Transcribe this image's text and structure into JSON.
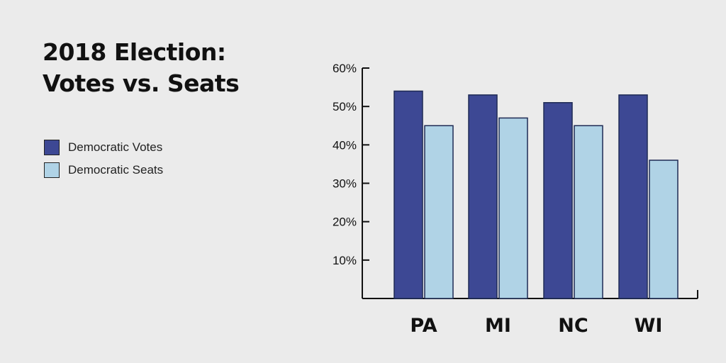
{
  "title_lines": [
    "2018 Election:",
    "Votes vs. Seats"
  ],
  "legend": [
    {
      "label": "Democratic Votes",
      "color": "#3d4894"
    },
    {
      "label": "Democratic Seats",
      "color": "#b0d3e6"
    }
  ],
  "chart_data": {
    "type": "bar",
    "title": "2018 Election: Votes vs. Seats",
    "categories": [
      "PA",
      "MI",
      "NC",
      "WI"
    ],
    "series": [
      {
        "name": "Democratic Votes",
        "color": "#3d4894",
        "values": [
          54,
          53,
          51,
          53
        ]
      },
      {
        "name": "Democratic Seats",
        "color": "#b0d3e6",
        "values": [
          45,
          47,
          45,
          36
        ]
      }
    ],
    "y_ticks": [
      "10%",
      "20%",
      "30%",
      "40%",
      "50%",
      "60%"
    ],
    "y_tick_values": [
      10,
      20,
      30,
      40,
      50,
      60
    ],
    "ylim": [
      0,
      60
    ],
    "grid": false,
    "legend_position": "left"
  }
}
